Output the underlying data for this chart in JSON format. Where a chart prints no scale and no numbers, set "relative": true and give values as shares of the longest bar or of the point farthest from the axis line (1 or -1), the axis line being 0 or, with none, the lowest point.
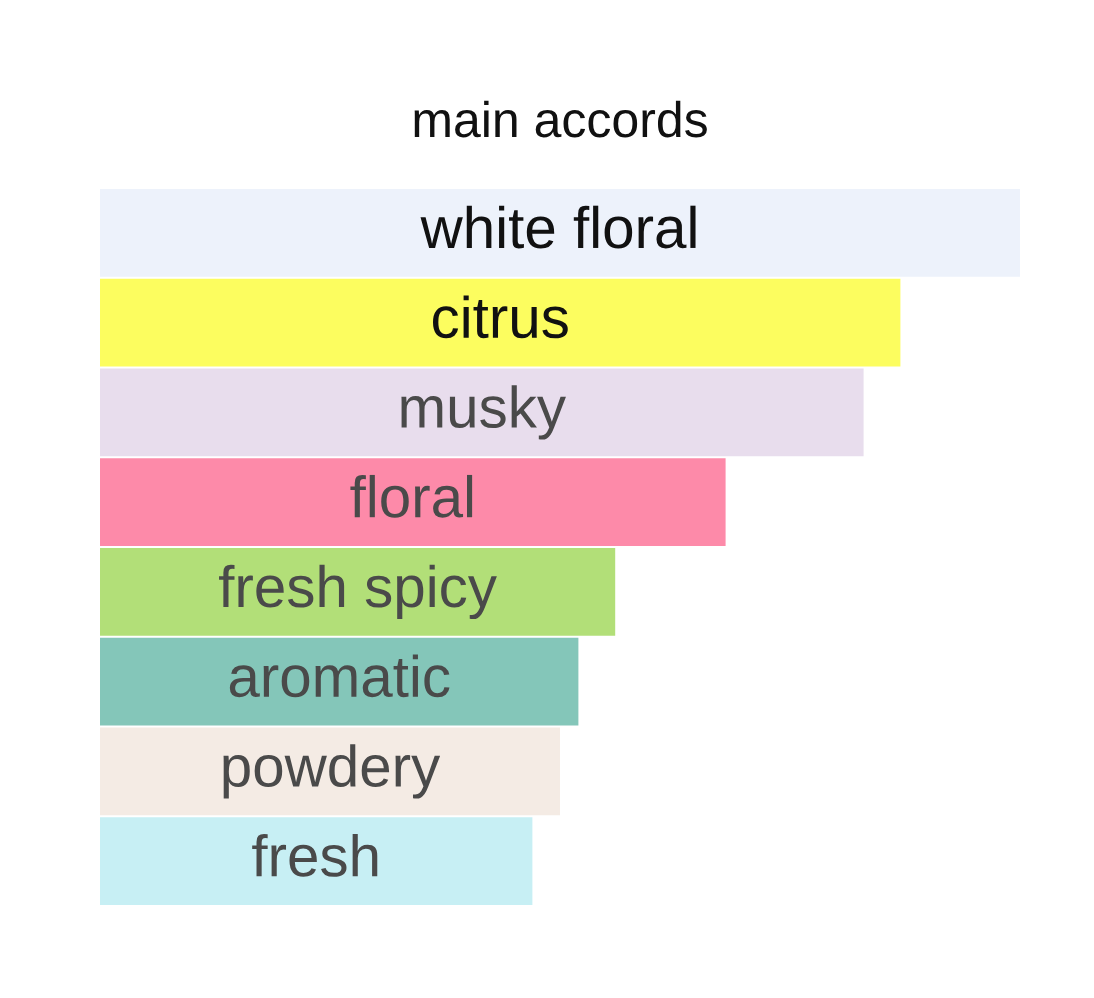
{
  "chart_data": {
    "type": "bar",
    "orientation": "horizontal",
    "relative": true,
    "title": "main accords",
    "categories": [
      "white floral",
      "citrus",
      "musky",
      "floral",
      "fresh spicy",
      "aromatic",
      "powdery",
      "fresh"
    ],
    "values": [
      1,
      0.87,
      0.83,
      0.68,
      0.56,
      0.52,
      0.5,
      0.47
    ],
    "colors": [
      "#edf2fb",
      "#fcfd5f",
      "#e8dded",
      "#fd8aa9",
      "#b2df78",
      "#84c6b9",
      "#f4ebe4",
      "#c7eff4"
    ]
  }
}
